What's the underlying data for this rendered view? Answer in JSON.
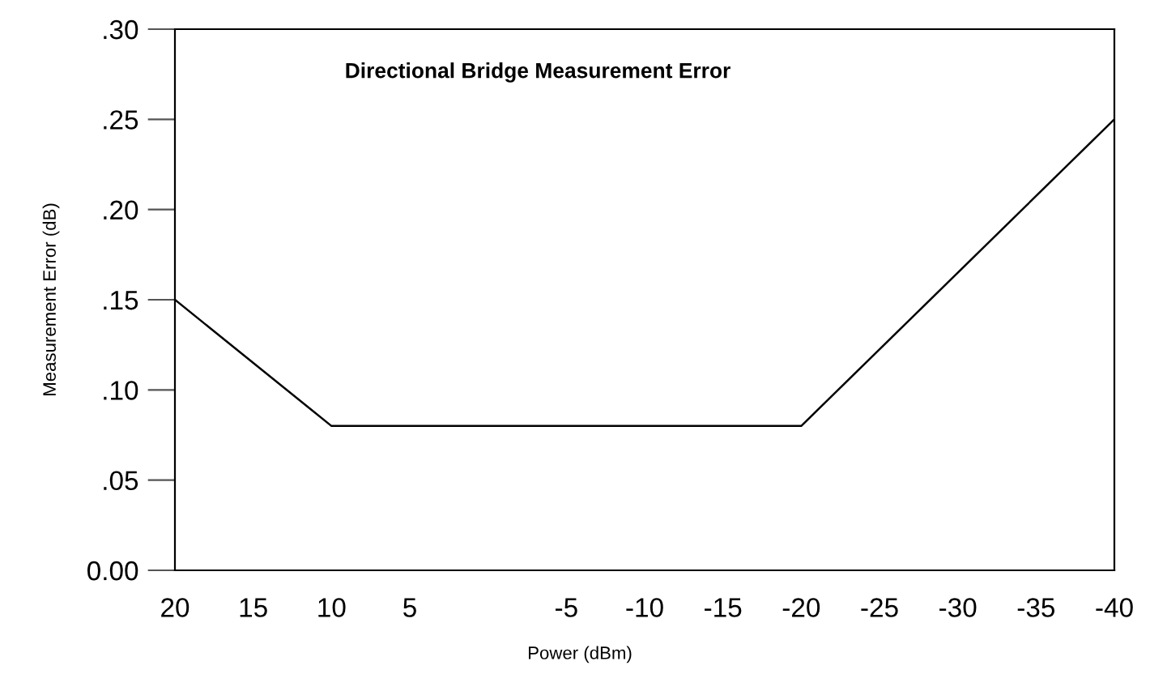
{
  "chart_data": {
    "type": "line",
    "title": "Directional Bridge Measurement Error",
    "xlabel": "Power (dBm)",
    "ylabel": "Measurement Error (dB)",
    "x": [
      20,
      10,
      -20,
      -40
    ],
    "series": [
      {
        "color": "#000000",
        "values": [
          0.15,
          0.08,
          0.08,
          0.25
        ]
      }
    ],
    "xlim": [
      20,
      -40
    ],
    "xticks": [
      20,
      15,
      10,
      5,
      -5,
      -10,
      -15,
      -20,
      -25,
      -30,
      -35,
      -40
    ],
    "ylim": [
      0,
      0.3
    ],
    "yticks": [
      {
        "value": 0,
        "label": "0.00"
      },
      {
        "value": 0.05,
        "label": ".05"
      },
      {
        "value": 0.1,
        "label": ".10"
      },
      {
        "value": 0.15,
        "label": ".15"
      },
      {
        "value": 0.2,
        "label": ".20"
      },
      {
        "value": 0.25,
        "label": ".25"
      },
      {
        "value": 0.3,
        "label": ".30"
      }
    ],
    "grid": false,
    "marker": "none",
    "line_style": "solid"
  }
}
